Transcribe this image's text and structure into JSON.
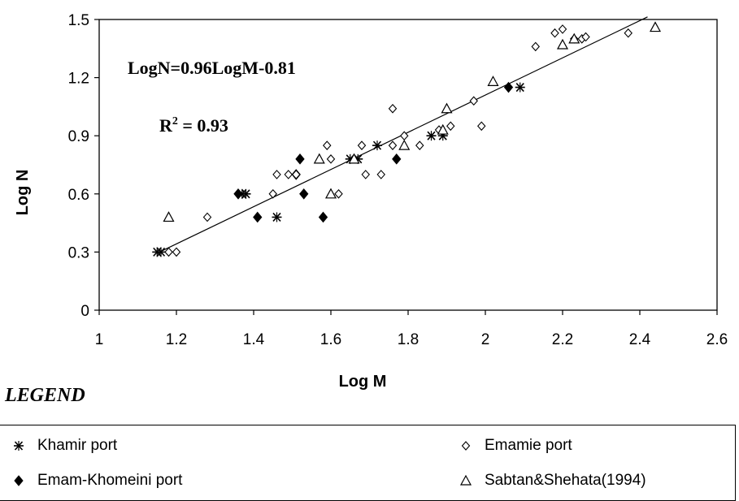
{
  "chart_data": {
    "type": "scatter",
    "xlabel": "Log M",
    "ylabel": "Log N",
    "xlim": [
      1,
      2.6
    ],
    "ylim": [
      0,
      1.5
    ],
    "x_ticks": [
      "1",
      "1.2",
      "1.4",
      "1.6",
      "1.8",
      "2",
      "2.2",
      "2.4",
      "2.6"
    ],
    "y_ticks": [
      "0",
      "0.3",
      "0.6",
      "0.9",
      "1.2",
      "1.5"
    ],
    "equation": "LogN=0.96LogM-0.81",
    "r2_text": " = 0.93",
    "r2_symbol": "R",
    "r2_sup": "2",
    "trendline": {
      "slope": 0.96,
      "intercept": -0.81,
      "x_range": [
        1.15,
        2.42
      ]
    },
    "series": [
      {
        "name": "Khamir port",
        "marker": "asterisk",
        "points": [
          [
            1.15,
            0.3
          ],
          [
            1.16,
            0.3
          ],
          [
            1.37,
            0.6
          ],
          [
            1.38,
            0.6
          ],
          [
            1.46,
            0.48
          ],
          [
            1.65,
            0.78
          ],
          [
            1.67,
            0.78
          ],
          [
            1.72,
            0.85
          ],
          [
            1.86,
            0.9
          ],
          [
            1.89,
            0.9
          ],
          [
            2.09,
            1.15
          ]
        ]
      },
      {
        "name": "Emam-Khomeini port",
        "marker": "diamond-filled",
        "points": [
          [
            1.36,
            0.6
          ],
          [
            1.41,
            0.48
          ],
          [
            1.51,
            0.7
          ],
          [
            1.52,
            0.78
          ],
          [
            1.53,
            0.6
          ],
          [
            1.58,
            0.48
          ],
          [
            1.77,
            0.78
          ],
          [
            2.06,
            1.15
          ]
        ]
      },
      {
        "name": "Emamie port",
        "marker": "diamond-open",
        "points": [
          [
            1.18,
            0.3
          ],
          [
            1.2,
            0.3
          ],
          [
            1.28,
            0.48
          ],
          [
            1.45,
            0.6
          ],
          [
            1.46,
            0.7
          ],
          [
            1.49,
            0.7
          ],
          [
            1.51,
            0.7
          ],
          [
            1.59,
            0.85
          ],
          [
            1.6,
            0.78
          ],
          [
            1.62,
            0.6
          ],
          [
            1.68,
            0.85
          ],
          [
            1.69,
            0.7
          ],
          [
            1.73,
            0.7
          ],
          [
            1.76,
            0.85
          ],
          [
            1.76,
            1.04
          ],
          [
            1.79,
            0.9
          ],
          [
            1.83,
            0.85
          ],
          [
            1.88,
            0.93
          ],
          [
            1.91,
            0.95
          ],
          [
            1.97,
            1.08
          ],
          [
            1.99,
            0.95
          ],
          [
            2.13,
            1.36
          ],
          [
            2.18,
            1.43
          ],
          [
            2.2,
            1.45
          ],
          [
            2.23,
            1.4
          ],
          [
            2.25,
            1.4
          ],
          [
            2.26,
            1.41
          ],
          [
            2.37,
            1.43
          ]
        ]
      },
      {
        "name": "Sabtan&Shehata(1994)",
        "marker": "triangle-open",
        "points": [
          [
            1.18,
            0.48
          ],
          [
            1.57,
            0.78
          ],
          [
            1.6,
            0.6
          ],
          [
            1.66,
            0.78
          ],
          [
            1.79,
            0.85
          ],
          [
            1.89,
            0.93
          ],
          [
            1.9,
            1.04
          ],
          [
            2.02,
            1.18
          ],
          [
            2.2,
            1.37
          ],
          [
            2.23,
            1.4
          ],
          [
            2.44,
            1.46
          ]
        ]
      }
    ]
  },
  "legend": {
    "title": "LEGEND",
    "items": [
      {
        "label": "Khamir port",
        "marker": "asterisk"
      },
      {
        "label": "Emam-Khomeini port",
        "marker": "diamond-filled"
      },
      {
        "label": "Emamie port",
        "marker": "diamond-open"
      },
      {
        "label": "Sabtan&Shehata(1994)",
        "marker": "triangle-open"
      }
    ]
  }
}
